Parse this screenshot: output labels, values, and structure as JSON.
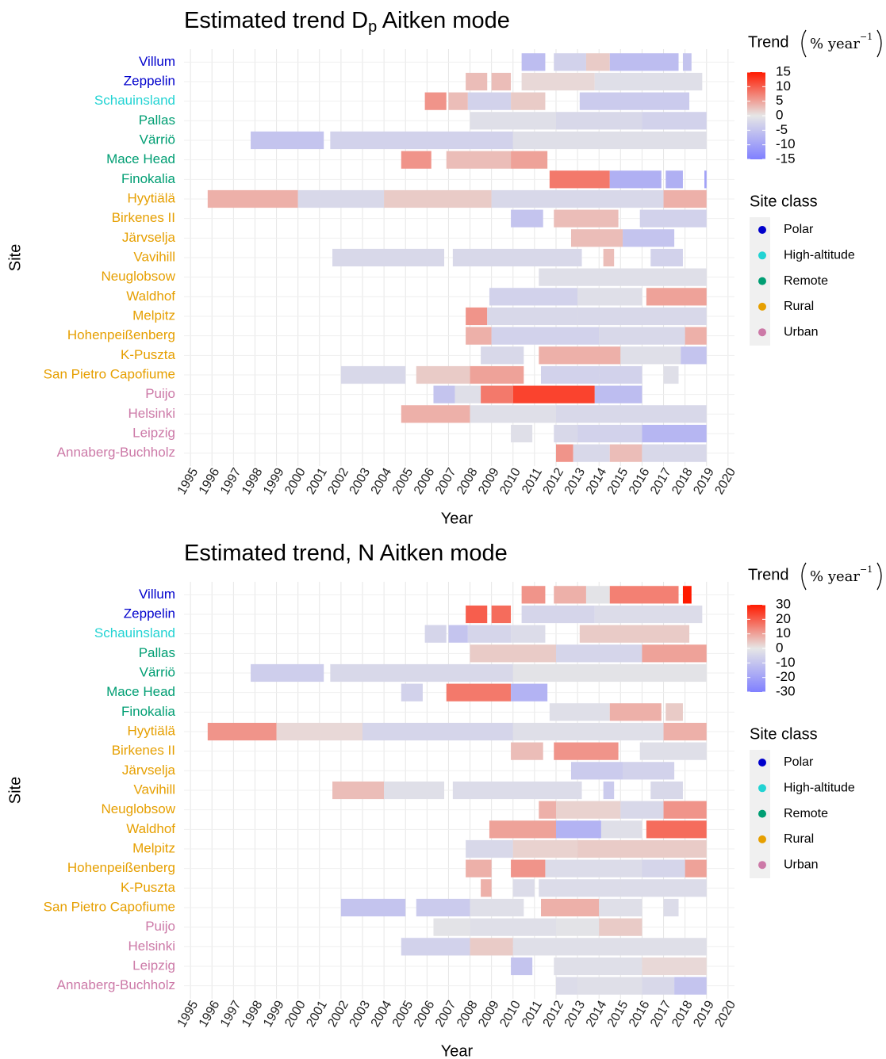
{
  "chart_data": [
    {
      "type": "heatmap",
      "title": "Estimated trend D",
      "title_subscript": "p",
      "title_after": " Aitken mode",
      "x_label": "Year",
      "y_label": "Site",
      "sites": [
        "Villum",
        "Zeppelin",
        "Schauinsland",
        "Pallas",
        "Värriö",
        "Mace Head",
        "Finokalia",
        "Hyytiälä",
        "Birkenes II",
        "Järvselja",
        "Vavihill",
        "Neuglobsow",
        "Waldhof",
        "Melpitz",
        "Hohenpeißenberg",
        "K-Puszta",
        "San Pietro Capofiume",
        "Puijo",
        "Helsinki",
        "Leipzig",
        "Annaberg-Buchholz"
      ],
      "site_classes": [
        "Polar",
        "Polar",
        "High-altitude",
        "Remote",
        "Remote",
        "Remote",
        "Remote",
        "Rural",
        "Rural",
        "Rural",
        "Rural",
        "Rural",
        "Rural",
        "Rural",
        "Rural",
        "Rural",
        "Rural",
        "Urban",
        "Urban",
        "Urban",
        "Urban"
      ],
      "xlim": [
        1994.7,
        2020.3
      ],
      "xticks": [
        1995,
        1996,
        1997,
        1998,
        1999,
        2000,
        2001,
        2002,
        2003,
        2004,
        2005,
        2006,
        2007,
        2008,
        2009,
        2010,
        2011,
        2012,
        2013,
        2014,
        2015,
        2016,
        2017,
        2018,
        2019,
        2020
      ],
      "segments": [
        [
          [
            2010.4,
            2011.5,
            -6
          ],
          [
            2011.9,
            2013.4,
            -3
          ],
          [
            2013.4,
            2014.5,
            2
          ],
          [
            2014.5,
            2017.7,
            -6
          ],
          [
            2017.9,
            2018.3,
            -5
          ]
        ],
        [
          [
            2007.8,
            2008.8,
            3
          ],
          [
            2009,
            2009.9,
            3
          ],
          [
            2010.4,
            2013.8,
            1
          ],
          [
            2013.8,
            2018.8,
            -1
          ]
        ],
        [
          [
            2005.9,
            2006.9,
            6
          ],
          [
            2007,
            2007.9,
            3
          ],
          [
            2007.9,
            2009.9,
            -3
          ],
          [
            2009.9,
            2011.5,
            2
          ],
          [
            2013.1,
            2018.2,
            -4
          ]
        ],
        [
          [
            2008,
            2012,
            -1
          ],
          [
            2012,
            2016,
            -2
          ],
          [
            2016,
            2019,
            -3
          ]
        ],
        [
          [
            1997.8,
            2001.2,
            -5
          ],
          [
            2001.5,
            2010,
            -3
          ],
          [
            2010,
            2019,
            -1
          ]
        ],
        [
          [
            2004.8,
            2006.2,
            6
          ],
          [
            2006.9,
            2009.9,
            3
          ],
          [
            2009.9,
            2011.6,
            5
          ]
        ],
        [
          [
            2011.7,
            2014.5,
            8
          ],
          [
            2014.5,
            2016.9,
            -8
          ],
          [
            2017.1,
            2017.9,
            -8
          ],
          [
            2018.9,
            2019,
            -10
          ]
        ],
        [
          [
            1995.8,
            2000,
            4
          ],
          [
            2000,
            2004,
            -2
          ],
          [
            2004,
            2009,
            2
          ],
          [
            2009,
            2017,
            -2
          ],
          [
            2017,
            2019,
            4
          ]
        ],
        [
          [
            2009.9,
            2011.4,
            -5
          ],
          [
            2011.9,
            2014.9,
            3
          ],
          [
            2015.9,
            2019,
            -3
          ]
        ],
        [
          [
            2012.7,
            2015.1,
            3
          ],
          [
            2015.1,
            2017.5,
            -5
          ]
        ],
        [
          [
            2001.6,
            2006.8,
            -2
          ],
          [
            2007.2,
            2013.2,
            -2
          ],
          [
            2014.2,
            2014.7,
            3
          ],
          [
            2016.4,
            2017.9,
            -3
          ]
        ],
        [
          [
            2011.2,
            2019,
            -1
          ]
        ],
        [
          [
            2008.9,
            2013,
            -3
          ],
          [
            2013,
            2016,
            -1
          ],
          [
            2016.2,
            2019,
            5
          ]
        ],
        [
          [
            2007.8,
            2008.8,
            6
          ],
          [
            2008.8,
            2013,
            -2
          ],
          [
            2013,
            2019,
            -2
          ]
        ],
        [
          [
            2007.8,
            2009,
            4
          ],
          [
            2009,
            2014,
            -3
          ],
          [
            2014,
            2018,
            -2
          ],
          [
            2018,
            2019,
            4
          ]
        ],
        [
          [
            2008.5,
            2010.5,
            -2
          ],
          [
            2011.2,
            2015,
            4
          ],
          [
            2015,
            2017.8,
            -1
          ],
          [
            2017.8,
            2019,
            -5
          ]
        ],
        [
          [
            2002,
            2005,
            -2
          ],
          [
            2005.5,
            2008,
            2
          ],
          [
            2008,
            2010.5,
            5
          ],
          [
            2011.3,
            2014,
            -3
          ],
          [
            2014,
            2016,
            -3
          ],
          [
            2017,
            2017.7,
            -1
          ]
        ],
        [
          [
            2006.3,
            2007.3,
            -5
          ],
          [
            2007.3,
            2008.5,
            -1
          ],
          [
            2008.5,
            2010,
            8
          ],
          [
            2010,
            2013.8,
            12
          ],
          [
            2013.8,
            2016,
            -6
          ]
        ],
        [
          [
            2004.8,
            2008,
            4
          ],
          [
            2008,
            2012,
            -1
          ],
          [
            2012,
            2019,
            -2
          ]
        ],
        [
          [
            2009.9,
            2010.9,
            -1
          ],
          [
            2011.9,
            2013,
            -2
          ],
          [
            2013,
            2016,
            -3
          ],
          [
            2016,
            2019,
            -7
          ]
        ],
        [
          [
            2012,
            2012.8,
            6
          ],
          [
            2012.8,
            2014.5,
            -2
          ],
          [
            2014.5,
            2016,
            3
          ],
          [
            2016,
            2019,
            -2
          ]
        ]
      ],
      "legend_title": "Trend",
      "legend_unit": "% year",
      "legend_unit_exponent": "−1",
      "clim": [
        -15,
        15
      ],
      "cticks": [
        15,
        10,
        5,
        0,
        -5,
        -10,
        -15
      ],
      "colors": {
        "low": "#8080ff",
        "mid": "#e6e6e6",
        "high": "#ff1a00"
      },
      "class_legend_title": "Site class",
      "classes": [
        {
          "name": "Polar",
          "color": "#0000cc"
        },
        {
          "name": "High-altitude",
          "color": "#22d3d3"
        },
        {
          "name": "Remote",
          "color": "#009e73"
        },
        {
          "name": "Rural",
          "color": "#e69f00"
        },
        {
          "name": "Urban",
          "color": "#cc79a7"
        }
      ],
      "grid": true
    },
    {
      "type": "heatmap",
      "title": "Estimated trend, N Aitken mode",
      "x_label": "Year",
      "y_label": "Site",
      "sites": [
        "Villum",
        "Zeppelin",
        "Schauinsland",
        "Pallas",
        "Värriö",
        "Mace Head",
        "Finokalia",
        "Hyytiälä",
        "Birkenes II",
        "Järvselja",
        "Vavihill",
        "Neuglobsow",
        "Waldhof",
        "Melpitz",
        "Hohenpeißenberg",
        "K-Puszta",
        "San Pietro Capofiume",
        "Puijo",
        "Helsinki",
        "Leipzig",
        "Annaberg-Buchholz"
      ],
      "site_classes": [
        "Polar",
        "Polar",
        "High-altitude",
        "Remote",
        "Remote",
        "Remote",
        "Remote",
        "Rural",
        "Rural",
        "Rural",
        "Rural",
        "Rural",
        "Rural",
        "Rural",
        "Rural",
        "Rural",
        "Rural",
        "Urban",
        "Urban",
        "Urban",
        "Urban"
      ],
      "xlim": [
        1994.7,
        2020.3
      ],
      "xticks": [
        1995,
        1996,
        1997,
        1998,
        1999,
        2000,
        2001,
        2002,
        2003,
        2004,
        2005,
        2006,
        2007,
        2008,
        2009,
        2010,
        2011,
        2012,
        2013,
        2014,
        2015,
        2016,
        2017,
        2018,
        2019,
        2020
      ],
      "segments": [
        [
          [
            2010.4,
            2011.5,
            12
          ],
          [
            2011.9,
            2013.4,
            8
          ],
          [
            2013.4,
            2014.5,
            -1
          ],
          [
            2014.5,
            2017.7,
            15
          ],
          [
            2017.9,
            2018.3,
            30
          ]
        ],
        [
          [
            2007.8,
            2008.8,
            20
          ],
          [
            2009,
            2009.9,
            18
          ],
          [
            2010.4,
            2013.8,
            -5
          ],
          [
            2013.8,
            2018.8,
            -3
          ]
        ],
        [
          [
            2005.9,
            2006.9,
            -5
          ],
          [
            2007,
            2007.9,
            -10
          ],
          [
            2007.9,
            2009.9,
            -5
          ],
          [
            2009.9,
            2011.5,
            -3
          ],
          [
            2013.1,
            2018.2,
            4
          ]
        ],
        [
          [
            2008,
            2012,
            4
          ],
          [
            2012,
            2016,
            -5
          ],
          [
            2016,
            2019,
            10
          ]
        ],
        [
          [
            1997.8,
            2001.2,
            -7
          ],
          [
            2001.5,
            2010,
            -4
          ],
          [
            2010,
            2019,
            -1
          ]
        ],
        [
          [
            2004.8,
            2005.8,
            -6
          ],
          [
            2006.9,
            2009.9,
            16
          ],
          [
            2009.9,
            2011.6,
            -15
          ]
        ],
        [
          [
            2011.7,
            2014.5,
            -2
          ],
          [
            2014.5,
            2016.9,
            8
          ],
          [
            2017.1,
            2017.9,
            4
          ]
        ],
        [
          [
            1995.8,
            1999,
            12
          ],
          [
            1999,
            2003,
            2
          ],
          [
            2003,
            2010,
            -5
          ],
          [
            2010,
            2017,
            -2
          ],
          [
            2017,
            2019,
            8
          ]
        ],
        [
          [
            2009.9,
            2011.4,
            6
          ],
          [
            2011.9,
            2014.9,
            12
          ],
          [
            2015.9,
            2019,
            -2
          ]
        ],
        [
          [
            2012.7,
            2015.1,
            -8
          ],
          [
            2015.1,
            2017.5,
            -6
          ]
        ],
        [
          [
            2001.6,
            2004,
            6
          ],
          [
            2004,
            2006.8,
            -2
          ],
          [
            2007.2,
            2013.2,
            -3
          ],
          [
            2014.2,
            2014.7,
            -8
          ],
          [
            2016.4,
            2017.9,
            -4
          ]
        ],
        [
          [
            2011.2,
            2012,
            8
          ],
          [
            2012,
            2015,
            3
          ],
          [
            2015,
            2017,
            -4
          ],
          [
            2017,
            2019,
            12
          ]
        ],
        [
          [
            2008.9,
            2012,
            10
          ],
          [
            2012,
            2014.1,
            -15
          ],
          [
            2014.1,
            2016,
            -2
          ],
          [
            2016.2,
            2019,
            18
          ]
        ],
        [
          [
            2007.8,
            2010,
            -4
          ],
          [
            2010,
            2013,
            3
          ],
          [
            2013,
            2019,
            4
          ]
        ],
        [
          [
            2007.8,
            2009,
            8
          ],
          [
            2009.9,
            2011.5,
            12
          ],
          [
            2011.5,
            2016,
            -3
          ],
          [
            2016,
            2018,
            -5
          ],
          [
            2018,
            2019,
            10
          ]
        ],
        [
          [
            2008.5,
            2009,
            8
          ],
          [
            2010,
            2011,
            -3
          ],
          [
            2011.2,
            2015,
            -3
          ],
          [
            2015,
            2019,
            -3
          ]
        ],
        [
          [
            2002,
            2005,
            -10
          ],
          [
            2005.5,
            2008,
            -8
          ],
          [
            2008,
            2010.5,
            -2
          ],
          [
            2011.3,
            2014,
            8
          ],
          [
            2014,
            2016,
            -2
          ],
          [
            2017,
            2017.7,
            -3
          ]
        ],
        [
          [
            2006.3,
            2008,
            -1
          ],
          [
            2008,
            2012,
            -2
          ],
          [
            2012,
            2014,
            -1
          ],
          [
            2014,
            2016,
            4
          ]
        ],
        [
          [
            2004.8,
            2008,
            -6
          ],
          [
            2008,
            2010,
            4
          ],
          [
            2010,
            2019,
            -2
          ]
        ],
        [
          [
            2009.9,
            2010.9,
            -10
          ],
          [
            2011.9,
            2016,
            -2
          ],
          [
            2016,
            2019,
            2
          ]
        ],
        [
          [
            2012,
            2013,
            -3
          ],
          [
            2013,
            2016,
            -2
          ],
          [
            2016,
            2017.5,
            -4
          ],
          [
            2017.5,
            2019,
            -10
          ]
        ]
      ],
      "legend_title": "Trend",
      "legend_unit": "% year",
      "legend_unit_exponent": "−1",
      "clim": [
        -30,
        30
      ],
      "cticks": [
        30,
        20,
        10,
        0,
        -10,
        -20,
        -30
      ],
      "colors": {
        "low": "#8080ff",
        "mid": "#e6e6e6",
        "high": "#ff1a00"
      },
      "class_legend_title": "Site class",
      "classes": [
        {
          "name": "Polar",
          "color": "#0000cc"
        },
        {
          "name": "High-altitude",
          "color": "#22d3d3"
        },
        {
          "name": "Remote",
          "color": "#009e73"
        },
        {
          "name": "Rural",
          "color": "#e69f00"
        },
        {
          "name": "Urban",
          "color": "#cc79a7"
        }
      ],
      "grid": true
    }
  ]
}
